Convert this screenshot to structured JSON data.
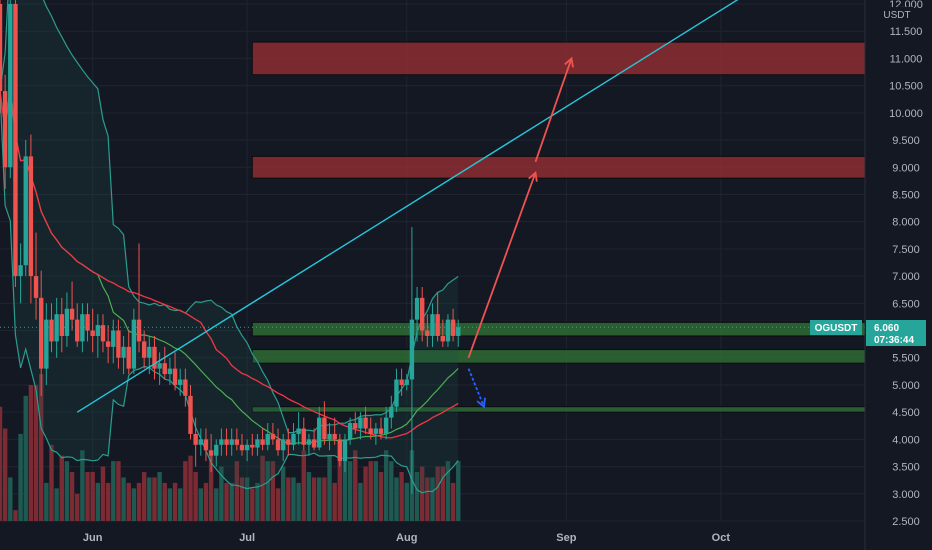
{
  "chart_data": {
    "type": "candlestick",
    "symbol": "OGUSDT",
    "currency_unit": "USDT",
    "last_price": "6.060",
    "countdown": "07:36:44",
    "y_ticks": [
      "2.500",
      "3.000",
      "3.500",
      "4.000",
      "4.500",
      "5.000",
      "5.500",
      "6.000",
      "6.500",
      "7.000",
      "7.500",
      "8.000",
      "8.500",
      "9.000",
      "9.500",
      "10.000",
      "10.500",
      "11.000",
      "11.500",
      "12.000"
    ],
    "ylim": [
      2.5,
      12.0
    ],
    "x_ticks": [
      {
        "label": "Jun",
        "day": 0
      },
      {
        "label": "Jul",
        "day": 30
      },
      {
        "label": "Aug",
        "day": 61
      },
      {
        "label": "Sep",
        "day": 92
      },
      {
        "label": "Oct",
        "day": 122
      }
    ],
    "xlim_days": [
      -18,
      150
    ],
    "zones": [
      {
        "kind": "resistance",
        "from": 10.7,
        "to": 11.3,
        "start_day": 31,
        "color": "#8c2e31"
      },
      {
        "kind": "resistance",
        "from": 8.8,
        "to": 9.2,
        "start_day": 31,
        "color": "#8c2e31"
      },
      {
        "kind": "support",
        "from": 5.9,
        "to": 6.15,
        "start_day": 31,
        "color": "#2e6b34"
      },
      {
        "kind": "support",
        "from": 5.4,
        "to": 5.65,
        "start_day": 31,
        "color": "#2e6b34"
      },
      {
        "kind": "support",
        "from": 4.5,
        "to": 4.6,
        "start_day": 31,
        "color": "#2e6b34"
      }
    ],
    "trendline": {
      "from": {
        "day": -3,
        "price": 4.5
      },
      "to": {
        "day": 129,
        "price": 12.3
      },
      "color": "#26c6da"
    },
    "projection_arrows": [
      {
        "color": "#ef5350",
        "points": [
          {
            "day": 73,
            "price": 5.5
          },
          {
            "day": 86,
            "price": 8.9
          }
        ]
      },
      {
        "color": "#ef5350",
        "points": [
          {
            "day": 86,
            "price": 9.1
          },
          {
            "day": 93,
            "price": 11.0
          }
        ]
      }
    ],
    "bearish_alternative": {
      "color": "#2962ff",
      "points": [
        {
          "day": 73,
          "price": 5.3
        },
        {
          "day": 76,
          "price": 4.6
        }
      ]
    },
    "overlays": [
      {
        "name": "MA long",
        "color": "#f23645"
      },
      {
        "name": "MA mid",
        "color": "#4caf50"
      },
      {
        "name": "Bollinger band",
        "color": "#2a9d8f"
      }
    ],
    "candles": [
      [
        -18,
        12,
        12.6,
        10,
        10.4
      ],
      [
        -17,
        10.4,
        10.7,
        8.6,
        9.0
      ],
      [
        -16,
        9.0,
        12.5,
        8.8,
        12.0
      ],
      [
        -15,
        12.0,
        12.2,
        6.8,
        7.0
      ],
      [
        -14,
        7.0,
        7.6,
        6.5,
        7.2
      ],
      [
        -13,
        7.2,
        9.5,
        7.0,
        9.2
      ],
      [
        -12,
        9.2,
        9.6,
        6.5,
        7.0
      ],
      [
        -11,
        7.0,
        7.8,
        6.2,
        6.6
      ],
      [
        -10,
        6.6,
        7.1,
        4.8,
        5.3
      ],
      [
        -9,
        5.3,
        6.5,
        5.0,
        6.2
      ],
      [
        -8,
        6.2,
        6.5,
        5.6,
        5.8
      ],
      [
        -7,
        5.8,
        6.6,
        5.5,
        6.3
      ],
      [
        -6,
        6.3,
        6.6,
        5.6,
        5.9
      ],
      [
        -5,
        5.9,
        6.7,
        5.7,
        6.4
      ],
      [
        -4,
        6.4,
        6.9,
        6.0,
        6.2
      ],
      [
        -3,
        6.2,
        6.5,
        5.7,
        5.8
      ],
      [
        -2,
        5.8,
        6.5,
        5.6,
        6.3
      ],
      [
        -1,
        6.3,
        6.5,
        5.8,
        6.0
      ],
      [
        0,
        6.0,
        6.4,
        5.6,
        5.9
      ],
      [
        1,
        5.9,
        6.3,
        5.5,
        6.1
      ],
      [
        2,
        6.1,
        6.3,
        5.6,
        5.8
      ],
      [
        3,
        5.8,
        6.1,
        5.4,
        5.7
      ],
      [
        4,
        5.7,
        6.2,
        5.4,
        6.0
      ],
      [
        5,
        6.0,
        6.2,
        5.3,
        5.5
      ],
      [
        6,
        5.5,
        5.9,
        5.2,
        5.7
      ],
      [
        7,
        5.7,
        6.0,
        5.2,
        5.3
      ],
      [
        8,
        5.3,
        6.4,
        5.2,
        6.2
      ],
      [
        9,
        6.2,
        7.6,
        5.6,
        5.8
      ],
      [
        10,
        5.8,
        6.0,
        5.3,
        5.5
      ],
      [
        11,
        5.5,
        5.9,
        5.2,
        5.7
      ],
      [
        12,
        5.7,
        5.9,
        5.1,
        5.3
      ],
      [
        13,
        5.3,
        5.6,
        5.0,
        5.4
      ],
      [
        14,
        5.4,
        5.7,
        5.1,
        5.2
      ],
      [
        15,
        5.2,
        5.5,
        5.0,
        5.3
      ],
      [
        16,
        5.3,
        5.6,
        4.9,
        5.0
      ],
      [
        17,
        5.0,
        5.3,
        4.8,
        5.1
      ],
      [
        18,
        5.1,
        5.3,
        4.6,
        4.8
      ],
      [
        19,
        4.8,
        5.0,
        4.0,
        4.1
      ],
      [
        20,
        4.1,
        4.4,
        3.5,
        3.9
      ],
      [
        21,
        3.9,
        4.2,
        3.7,
        4.0
      ],
      [
        22,
        4.0,
        4.2,
        3.6,
        3.8
      ],
      [
        23,
        3.8,
        4.1,
        3.4,
        3.7
      ],
      [
        24,
        3.7,
        4.0,
        3.5,
        3.9
      ],
      [
        25,
        3.9,
        4.2,
        3.7,
        4.0
      ],
      [
        26,
        4.0,
        4.2,
        3.7,
        3.9
      ],
      [
        27,
        3.9,
        4.2,
        3.7,
        4.0
      ],
      [
        28,
        4.0,
        4.2,
        3.8,
        3.9
      ],
      [
        29,
        3.9,
        4.1,
        3.7,
        3.8
      ],
      [
        30,
        3.8,
        4.0,
        3.6,
        3.9
      ],
      [
        31,
        3.9,
        4.1,
        3.7,
        3.85
      ],
      [
        32,
        3.85,
        4.1,
        3.7,
        4.0
      ],
      [
        33,
        4.0,
        4.2,
        3.8,
        3.9
      ],
      [
        34,
        3.9,
        4.3,
        3.8,
        4.1
      ],
      [
        35,
        4.1,
        4.3,
        3.9,
        4.0
      ],
      [
        36,
        4.0,
        4.2,
        3.7,
        3.8
      ],
      [
        37,
        3.8,
        4.1,
        3.6,
        4.0
      ],
      [
        38,
        4.0,
        4.2,
        3.7,
        3.9
      ],
      [
        39,
        3.9,
        4.3,
        3.8,
        4.1
      ],
      [
        40,
        4.1,
        4.5,
        3.9,
        4.2
      ],
      [
        41,
        4.2,
        4.4,
        3.8,
        3.9
      ],
      [
        42,
        3.9,
        4.1,
        3.7,
        4.0
      ],
      [
        43,
        4.0,
        4.2,
        3.8,
        3.85
      ],
      [
        44,
        3.85,
        4.6,
        3.8,
        4.4
      ],
      [
        45,
        4.4,
        4.7,
        3.9,
        4.0
      ],
      [
        46,
        4.0,
        4.3,
        3.8,
        4.1
      ],
      [
        47,
        4.1,
        4.4,
        3.9,
        4.0
      ],
      [
        48,
        4.0,
        4.1,
        3.5,
        3.6
      ],
      [
        49,
        3.6,
        4.1,
        3.4,
        4.0
      ],
      [
        50,
        4.0,
        4.4,
        3.9,
        4.3
      ],
      [
        51,
        4.3,
        4.5,
        4.1,
        4.2
      ],
      [
        52,
        4.2,
        4.5,
        4.0,
        4.4
      ],
      [
        53,
        4.4,
        4.6,
        4.1,
        4.2
      ],
      [
        54,
        4.2,
        4.4,
        4.0,
        4.1
      ],
      [
        55,
        4.1,
        4.3,
        3.9,
        4.2
      ],
      [
        56,
        4.2,
        4.4,
        4.0,
        4.1
      ],
      [
        57,
        4.1,
        4.6,
        4.0,
        4.4
      ],
      [
        58,
        4.4,
        4.8,
        4.2,
        4.6
      ],
      [
        59,
        4.6,
        5.3,
        4.5,
        5.1
      ],
      [
        60,
        5.1,
        5.3,
        4.8,
        5.0
      ],
      [
        61,
        5.0,
        5.2,
        4.9,
        5.1
      ],
      [
        62,
        5.1,
        7.9,
        3.0,
        6.2
      ],
      [
        63,
        6.2,
        6.8,
        5.8,
        6.6
      ],
      [
        64,
        6.6,
        6.8,
        5.8,
        6.0
      ],
      [
        65,
        6.0,
        6.3,
        5.7,
        5.9
      ],
      [
        66,
        5.9,
        6.5,
        5.7,
        6.3
      ],
      [
        67,
        6.3,
        6.7,
        5.8,
        5.9
      ],
      [
        68,
        5.9,
        6.2,
        5.7,
        5.8
      ],
      [
        69,
        5.8,
        6.3,
        5.7,
        6.2
      ],
      [
        70,
        6.2,
        6.4,
        5.8,
        5.9
      ],
      [
        71,
        5.9,
        6.2,
        5.7,
        6.06
      ]
    ],
    "volumes": [
      4.6,
      4.2,
      3.3,
      2.7,
      4.1,
      4.8,
      5.0,
      5.0,
      5.2,
      3.2,
      3.9,
      3.1,
      3.7,
      3.6,
      3.4,
      3.0,
      3.8,
      3.4,
      3.4,
      3.2,
      3.5,
      3.2,
      3.6,
      3.6,
      3.3,
      3.2,
      3.1,
      3.2,
      3.4,
      3.3,
      3.3,
      3.4,
      3.2,
      3.1,
      3.2,
      3.1,
      3.6,
      3.7,
      3.4,
      3.1,
      3.2,
      3.7,
      3.1,
      3.5,
      3.2,
      3.2,
      3.6,
      3.3,
      3.3,
      3.1,
      3.2,
      3.7,
      3.6,
      3.6,
      3.1,
      3.5,
      3.3,
      3.3,
      3.2,
      3.8,
      3.4,
      3.3,
      3.3,
      3.3,
      3.7,
      3.2,
      3.6,
      3.6,
      3.6,
      3.8,
      3.2,
      3.5,
      3.6,
      3.6,
      3.4,
      3.8,
      3.6,
      3.3,
      3.4,
      3.2,
      3.8,
      3.4,
      3.5,
      3.3,
      3.3,
      3.5,
      3.5,
      3.6,
      3.2,
      3.6
    ]
  }
}
